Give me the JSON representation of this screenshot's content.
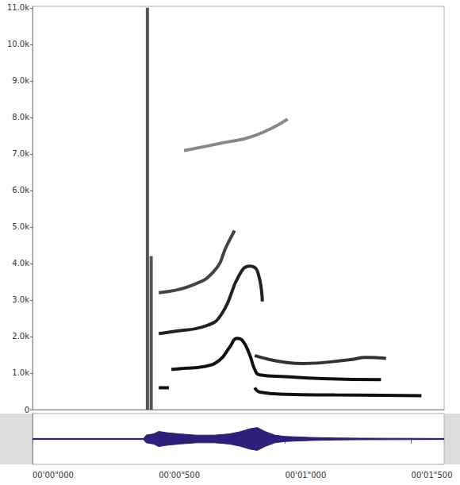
{
  "chart_data": [
    {
      "type": "spectrogram",
      "xlim": [
        0,
        1.63
      ],
      "ylim": [
        0,
        11040
      ],
      "yticks": [
        0,
        {
          "value": 1000,
          "label": "1.0k"
        },
        {
          "value": 2000,
          "label": "2.0k"
        },
        {
          "value": 3000,
          "label": "3.0k"
        },
        {
          "value": 4000,
          "label": "4.0k"
        },
        {
          "value": 5000,
          "label": "5.0k"
        },
        {
          "value": 6000,
          "label": "6.0k"
        },
        {
          "value": 7000,
          "label": "7.0k"
        },
        {
          "value": 8000,
          "label": "8.0k"
        },
        {
          "value": 9000,
          "label": "9.0k"
        },
        {
          "value": 10000,
          "label": "10.0k"
        },
        {
          "value": 11000,
          "label": "11.0k"
        }
      ],
      "tick_labels": "y",
      "grid": false,
      "series": [
        {
          "type": "line",
          "color": "#555555",
          "x": [
            0.455,
            0.455
          ],
          "values": [
            0,
            11000
          ]
        },
        {
          "type": "line",
          "color": "#555555",
          "x": [
            0.47,
            0.47
          ],
          "values": [
            0,
            4200
          ]
        },
        {
          "type": "line",
          "color": "#111111",
          "x": [
            0.5,
            0.54,
            0.545,
            0.55,
            0.6,
            0.68,
            0.74,
            0.78,
            0.81,
            0.83,
            0.86,
            0.88,
            0.9,
            1.0,
            1.15,
            1.38
          ],
          "values": [
            600,
            600,
            null,
            1100,
            1130,
            1180,
            1350,
            1700,
            1950,
            1900,
            1500,
            1100,
            950,
            900,
            850,
            820
          ]
        },
        {
          "type": "line",
          "color": "#111111",
          "x": [
            0.88,
            0.9,
            1.0,
            1.2,
            1.54
          ],
          "values": [
            600,
            480,
            420,
            400,
            380
          ]
        },
        {
          "type": "line",
          "color": "#333333",
          "x": [
            0.88,
            1.07,
            1.26,
            1.32,
            1.4
          ],
          "values": [
            1480,
            1260,
            1370,
            1430,
            1400
          ]
        },
        {
          "type": "line",
          "color": "#222222",
          "x": [
            0.5,
            0.55,
            0.69,
            0.75,
            0.82,
            0.86,
            0.89,
            0.91
          ],
          "values": [
            2080,
            2130,
            2300,
            2630,
            3700,
            3930,
            3800,
            2960
          ]
        },
        {
          "type": "line",
          "color": "#444444",
          "x": [
            0.5,
            0.63,
            0.72,
            0.77,
            0.8
          ],
          "values": [
            3200,
            3400,
            3800,
            4500,
            4900
          ]
        },
        {
          "type": "line",
          "color": "#888888",
          "x": [
            0.6,
            0.75,
            0.88,
            1.01
          ],
          "values": [
            7090,
            7300,
            7500,
            7950
          ]
        }
      ]
    },
    {
      "type": "waveform",
      "xlim": [
        0,
        1.63
      ],
      "xticks": [
        {
          "value": 0,
          "label": "00'00\"000"
        },
        {
          "value": 0.5,
          "label": "00'00\"500"
        },
        {
          "value": 1.0,
          "label": "00'01\"000"
        },
        {
          "value": 1.5,
          "label": "00'01\"500"
        }
      ],
      "ylim": [
        -1,
        1
      ],
      "tick_labels": "x",
      "grid": false,
      "series": [
        {
          "type": "line",
          "color": "#2e1f7a",
          "x": [
            0,
            0.2,
            0.44,
            0.45,
            0.48,
            0.5,
            0.53,
            0.58,
            0.65,
            0.72,
            0.78,
            0.82,
            0.86,
            0.89,
            0.92,
            0.96,
            1.0,
            1.1,
            1.2,
            1.3,
            1.63
          ],
          "values": [
            0.02,
            0.02,
            0.02,
            0.15,
            0.2,
            0.3,
            0.25,
            0.2,
            0.15,
            0.15,
            0.2,
            0.28,
            0.4,
            0.45,
            0.3,
            0.15,
            0.1,
            0.06,
            0.04,
            0.03,
            0.02
          ]
        },
        {
          "type": "line",
          "color": "#2e1f7a",
          "x": [
            0,
            0.2,
            0.44,
            0.45,
            0.48,
            0.5,
            0.53,
            0.58,
            0.65,
            0.72,
            0.78,
            0.82,
            0.86,
            0.89,
            0.92,
            0.96,
            1.0,
            1.1,
            1.2,
            1.3,
            1.63
          ],
          "values": [
            -0.02,
            -0.02,
            -0.02,
            -0.15,
            -0.2,
            -0.3,
            -0.25,
            -0.2,
            -0.15,
            -0.15,
            -0.2,
            -0.28,
            -0.4,
            -0.45,
            -0.3,
            -0.15,
            -0.1,
            -0.06,
            -0.04,
            -0.03,
            -0.02
          ]
        }
      ]
    }
  ]
}
